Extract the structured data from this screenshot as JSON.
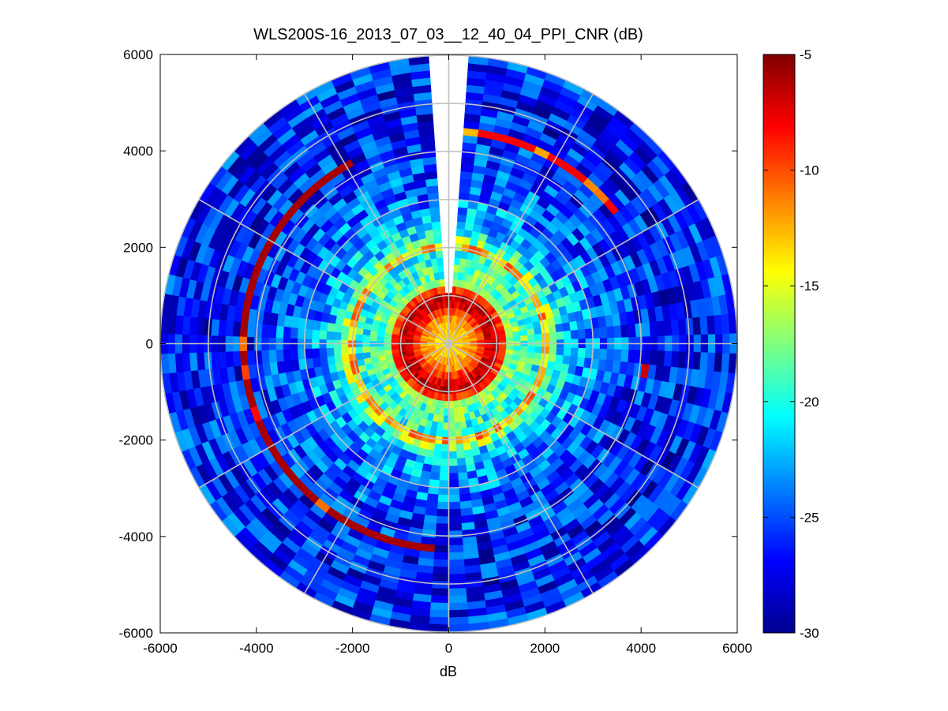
{
  "chart_data": {
    "type": "heatmap",
    "subtype": "polar-ppi",
    "title": "WLS200S-16_2013_07_03__12_40_04_PPI_CNR (dB)",
    "xlabel": "dB",
    "ylabel": "",
    "xlim": [
      -6000,
      6000
    ],
    "ylim": [
      -6000,
      6000
    ],
    "xticks": [
      -6000,
      -4000,
      -2000,
      0,
      2000,
      4000,
      6000
    ],
    "yticks": [
      6000,
      4000,
      2000,
      0,
      -2000,
      -4000,
      -6000
    ],
    "xtick_labels": [
      "-6000",
      "-4000",
      "-2000",
      "0",
      "2000",
      "4000",
      "6000"
    ],
    "ytick_labels": [
      "6000",
      "4000",
      "2000",
      "0",
      "-2000",
      "-4000",
      "-6000"
    ],
    "grid_range_rings": [
      1000,
      2000,
      3000,
      4000,
      5000,
      6000
    ],
    "grid_spoke_step_deg": 30,
    "max_range": 6000,
    "blank_sector_deg": [
      -4,
      4
    ],
    "colorbar": {
      "label": "",
      "min": -30,
      "max": -5,
      "ticks": [
        -5,
        -10,
        -15,
        -20,
        -25,
        -30
      ],
      "tick_labels": [
        "-5",
        "-10",
        "-15",
        "-20",
        "-25",
        "-30"
      ],
      "colormap": "jet"
    },
    "radial_profile": [
      {
        "range": 0,
        "cnr": -14
      },
      {
        "range": 300,
        "cnr": -13
      },
      {
        "range": 500,
        "cnr": -12
      },
      {
        "range": 700,
        "cnr": -9
      },
      {
        "range": 900,
        "cnr": -6
      },
      {
        "range": 1100,
        "cnr": -8
      },
      {
        "range": 1300,
        "cnr": -18
      },
      {
        "range": 1600,
        "cnr": -19
      },
      {
        "range": 1900,
        "cnr": -20
      },
      {
        "range": 2000,
        "cnr": -12
      },
      {
        "range": 2300,
        "cnr": -21
      },
      {
        "range": 2700,
        "cnr": -23
      },
      {
        "range": 3000,
        "cnr": -24
      },
      {
        "range": 3500,
        "cnr": -25
      },
      {
        "range": 4000,
        "cnr": -26
      },
      {
        "range": 5000,
        "cnr": -26.5
      },
      {
        "range": 6000,
        "cnr": -26
      }
    ],
    "annotations": [
      {
        "feature": "strong return arc",
        "range": 4300,
        "azimuth_deg": [
          185,
          330
        ],
        "cnr": -6
      },
      {
        "feature": "strong return arc",
        "range": 4400,
        "azimuth_deg": [
          5,
          50
        ],
        "cnr": -8
      },
      {
        "feature": "strong return arc",
        "range": 4150,
        "azimuth_deg": [
          95,
          100
        ],
        "cnr": -7
      }
    ]
  }
}
